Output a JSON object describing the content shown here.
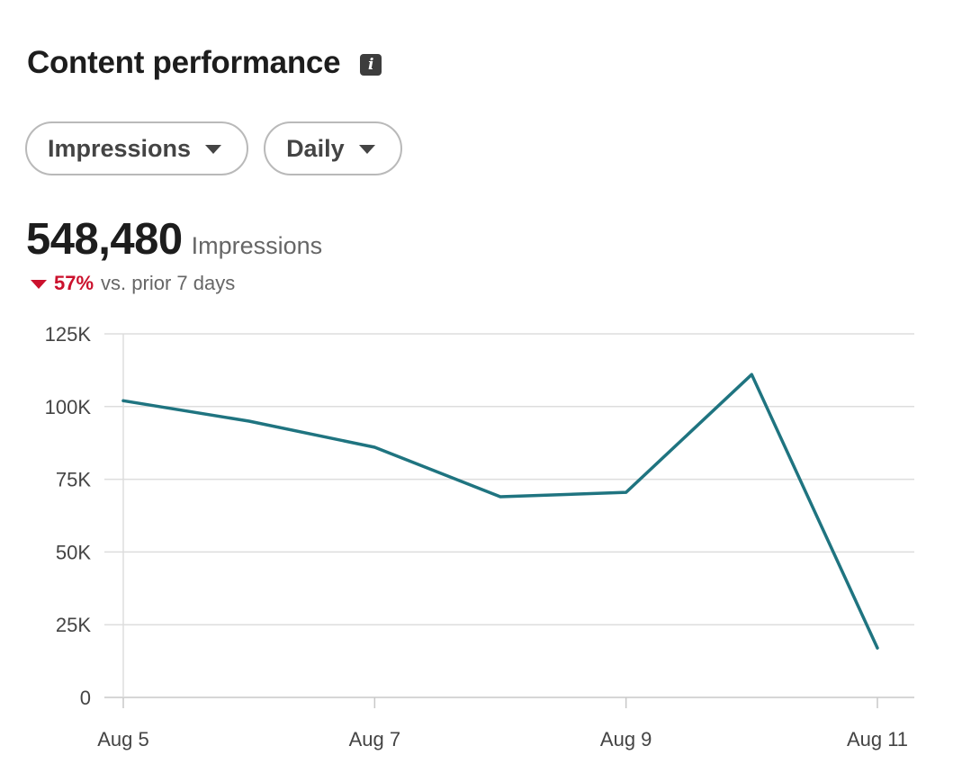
{
  "header": {
    "title": "Content performance",
    "info_icon": "info-icon"
  },
  "filters": {
    "metric_label": "Impressions",
    "period_label": "Daily"
  },
  "summary": {
    "value": "548,480",
    "unit": "Impressions",
    "change_pct": "57%",
    "change_direction": "down",
    "change_text": "vs. prior 7 days"
  },
  "colors": {
    "line": "#1f7480",
    "negative": "#cb112d",
    "grid": "#dddddd"
  },
  "chart_data": {
    "type": "line",
    "title": "",
    "xlabel": "",
    "ylabel": "",
    "x": [
      "Aug 5",
      "Aug 6",
      "Aug 7",
      "Aug 8",
      "Aug 9",
      "Aug 10",
      "Aug 11"
    ],
    "x_tick_labels": [
      "Aug 5",
      "Aug 7",
      "Aug 9",
      "Aug 11"
    ],
    "y_tick_labels": [
      "0",
      "25K",
      "50K",
      "75K",
      "100K",
      "125K"
    ],
    "y_ticks": [
      0,
      25000,
      50000,
      75000,
      100000,
      125000
    ],
    "ylim": [
      0,
      125000
    ],
    "grid": true,
    "series": [
      {
        "values": [
          102000,
          95000,
          86000,
          69000,
          70500,
          111000,
          17000
        ]
      }
    ]
  }
}
